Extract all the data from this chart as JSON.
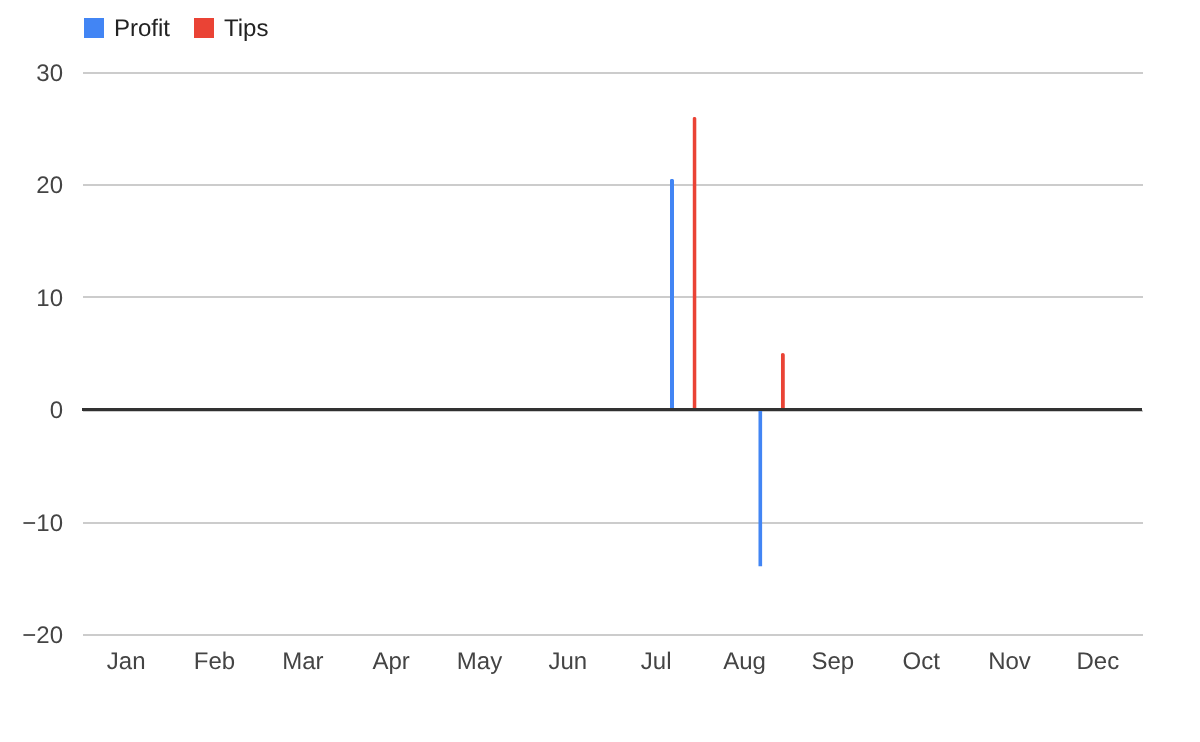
{
  "chart_data": {
    "type": "bar",
    "categories": [
      "Jan",
      "Feb",
      "Mar",
      "Apr",
      "May",
      "Jun",
      "Jul",
      "Aug",
      "Sep",
      "Oct",
      "Nov",
      "Dec"
    ],
    "series": [
      {
        "name": "Profit",
        "color": "#4285f4",
        "values": [
          0,
          0,
          0,
          0,
          0,
          0,
          20.5,
          -14,
          0,
          0,
          0,
          0
        ]
      },
      {
        "name": "Tips",
        "color": "#ea4335",
        "values": [
          0,
          0,
          0,
          0,
          0,
          0,
          26,
          5,
          0,
          0,
          0,
          0
        ]
      }
    ],
    "ylim": [
      -20,
      30
    ],
    "yticks": [
      -20,
      -10,
      0,
      10,
      20,
      30
    ],
    "grid": "y",
    "legend": "top"
  }
}
